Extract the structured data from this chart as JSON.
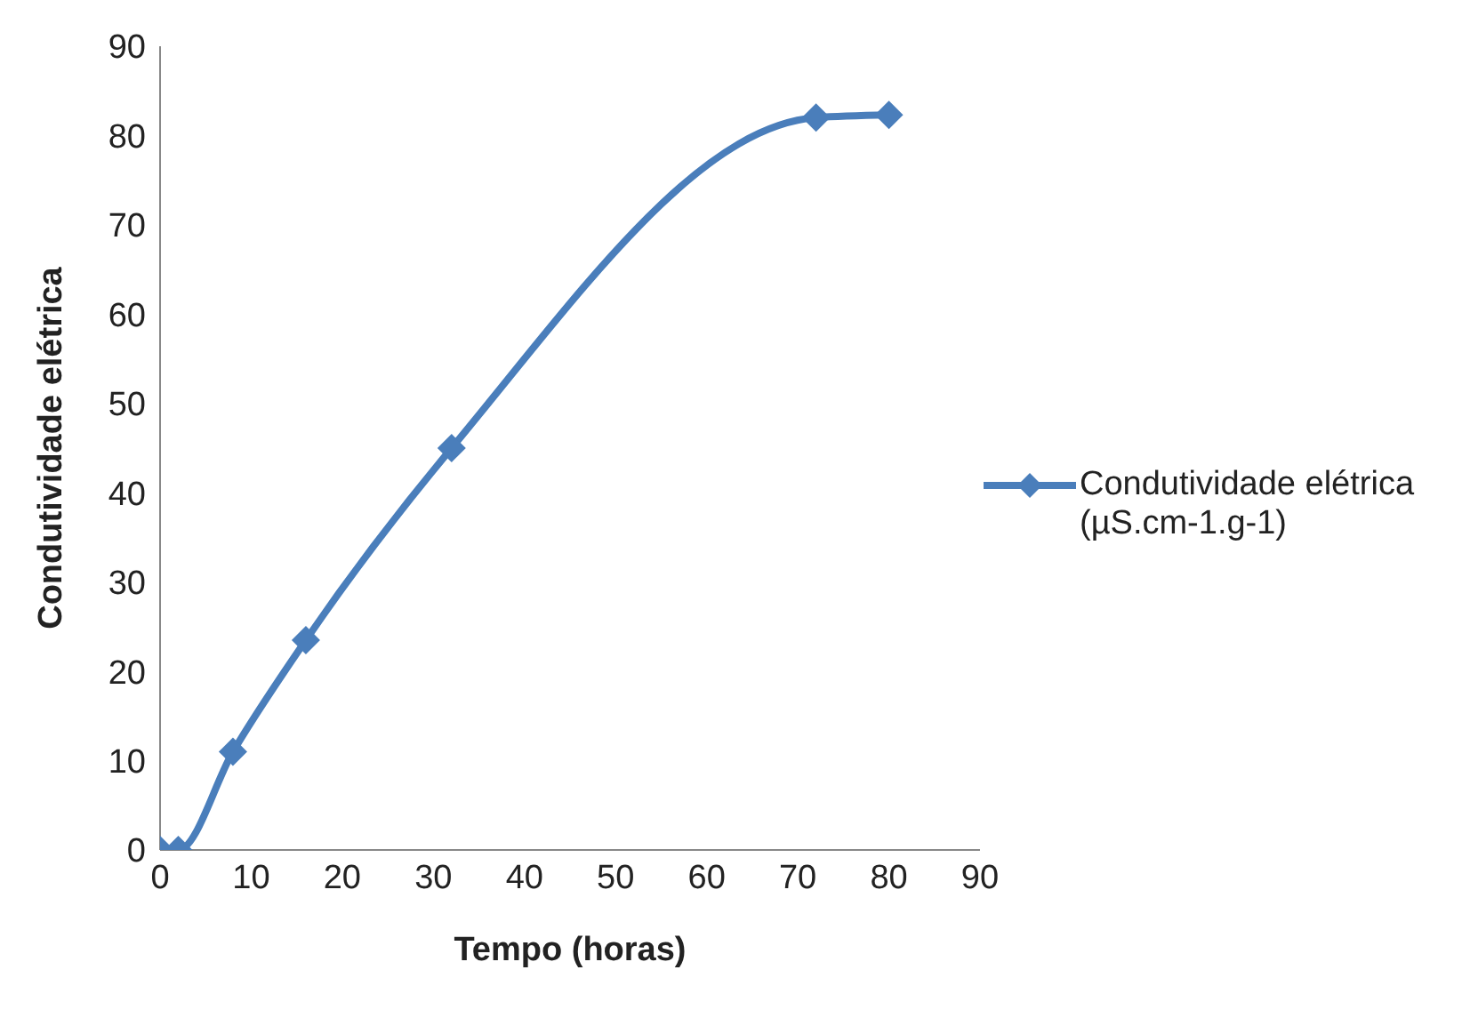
{
  "chart_data": {
    "type": "line",
    "xlabel": "Tempo (horas)",
    "ylabel": "Condutividade elétrica",
    "x": [
      0,
      2,
      8,
      16,
      32,
      72,
      80
    ],
    "series": [
      {
        "name": "Condutividade elétrica (µS.cm-1.g-1)",
        "color": "#4a7ebb",
        "values": [
          0,
          0,
          11,
          23.5,
          45,
          82,
          82.3
        ]
      }
    ],
    "xlim": [
      0,
      90
    ],
    "xticks": [
      0,
      10,
      20,
      30,
      40,
      50,
      60,
      70,
      80,
      90
    ],
    "ylim": [
      0,
      90
    ],
    "yticks": [
      0,
      10,
      20,
      30,
      40,
      50,
      60,
      70,
      80,
      90
    ],
    "grid": false,
    "legend": "right",
    "marker": "diamond",
    "line_style": "solid"
  }
}
